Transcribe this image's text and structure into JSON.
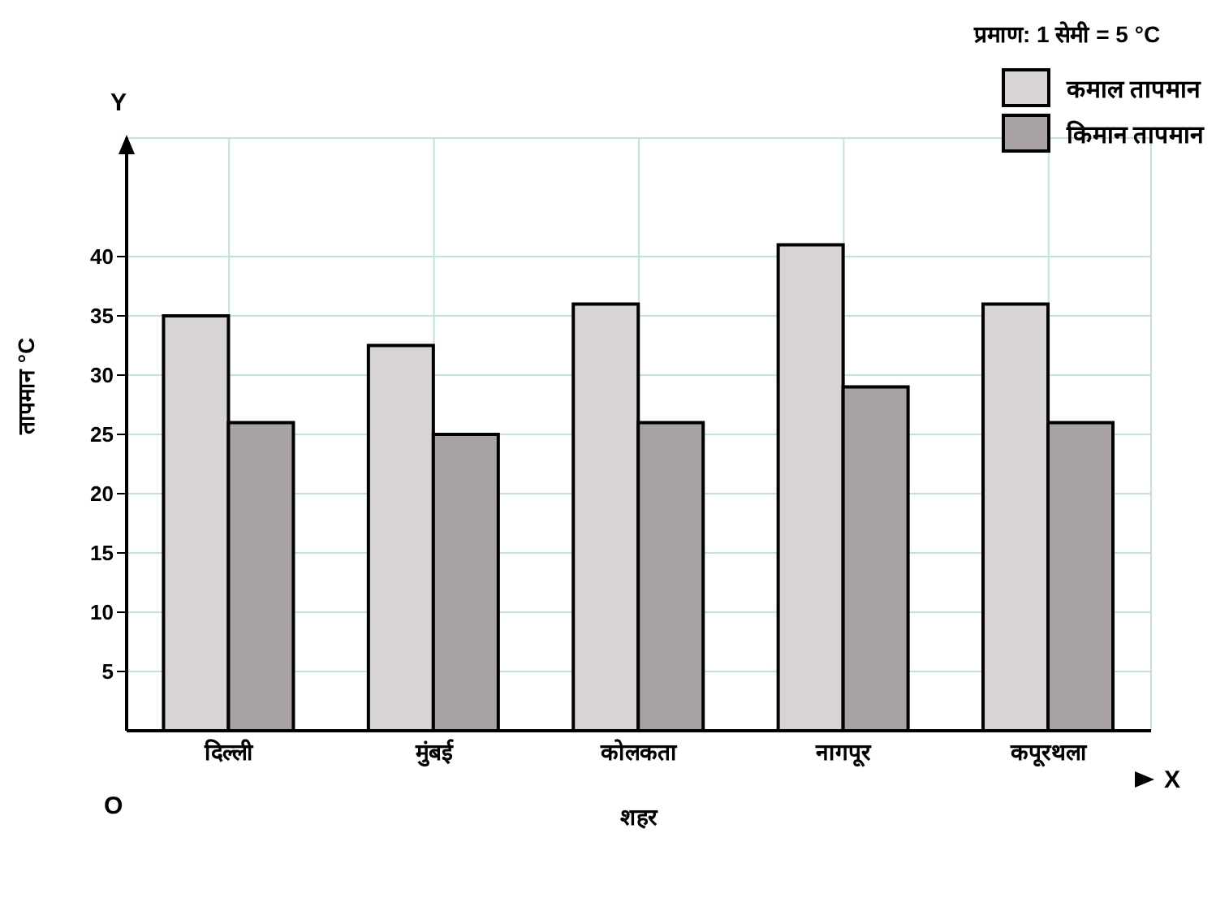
{
  "chart_data": {
    "type": "bar",
    "xlabel": "शहर",
    "ylabel": "तापमान °C",
    "categories": [
      "दिल्ली",
      "मुंबई",
      "कोलकता",
      "नागपूर",
      "कपूरथला"
    ],
    "series": [
      {
        "name": "कमाल तापमान",
        "color": "#d9d4d4",
        "values": [
          35,
          32.5,
          36,
          41,
          36
        ]
      },
      {
        "name": "किमान तापमान",
        "color": "#a8a2a2",
        "values": [
          26,
          25,
          26,
          29,
          26
        ]
      }
    ],
    "ylim": [
      0,
      50
    ],
    "yticks": [
      5,
      10,
      15,
      20,
      25,
      30,
      35,
      40
    ],
    "grid": true,
    "legend": "top right",
    "annotations": [
      "प्रमाण: 1 सेमी = 5 °C",
      "Y",
      "X",
      "O"
    ]
  }
}
